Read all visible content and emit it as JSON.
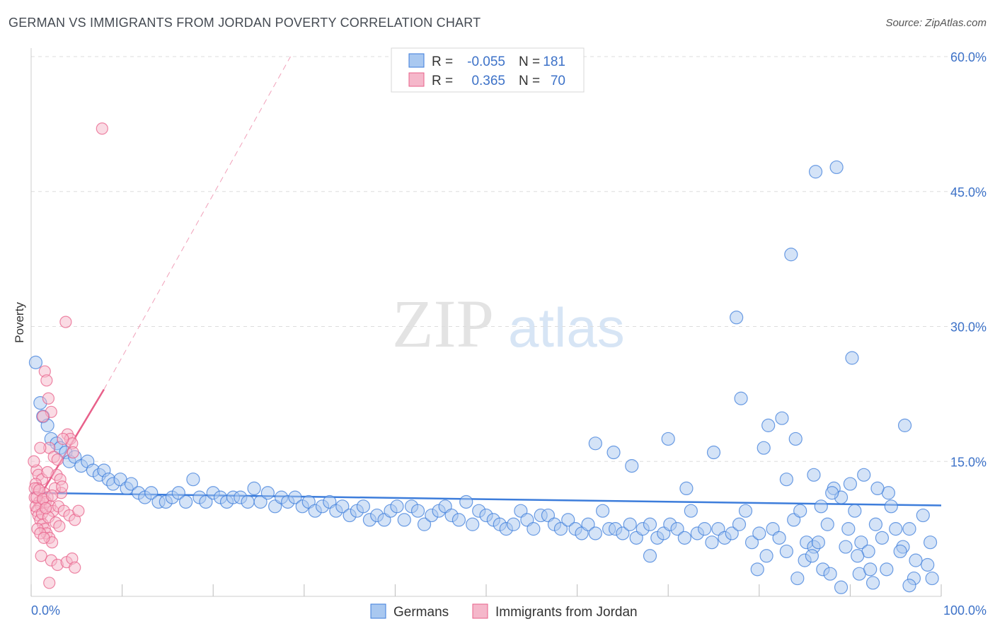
{
  "title": "GERMAN VS IMMIGRANTS FROM JORDAN POVERTY CORRELATION CHART",
  "source": "Source: ZipAtlas.com",
  "watermark": {
    "zip": "ZIP",
    "atlas": "atlas"
  },
  "colors": {
    "blue": "#3d7ddb",
    "blue_fill": "#a9c8f0",
    "pink": "#e8608a",
    "pink_fill": "#f5b7ca",
    "tick_text": "#3d72c8",
    "grid": "#dddddd"
  },
  "legend": {
    "rows": [
      {
        "r_label": "R =",
        "r_value": "-0.055",
        "n_label": "N =",
        "n_value": "181"
      },
      {
        "r_label": "R =",
        "r_value": "0.365",
        "n_label": "N =",
        "n_value": "70"
      }
    ]
  },
  "bottom_legend": [
    "Germans",
    "Immigrants from Jordan"
  ],
  "chart_data": {
    "type": "scatter",
    "xlabel": "",
    "ylabel": "Poverty",
    "xlim": [
      0,
      100
    ],
    "ylim": [
      0,
      60
    ],
    "x_tick_labels": [
      "0.0%",
      "100.0%"
    ],
    "y_ticks": [
      15,
      30,
      45,
      60
    ],
    "y_tick_labels": [
      "15.0%",
      "30.0%",
      "45.0%",
      "60.0%"
    ],
    "grid": "horizontal-dashed",
    "legend_placement": "top-center",
    "series": [
      {
        "name": "Germans",
        "r": -0.055,
        "n": 181,
        "trend": {
          "x": [
            0,
            100
          ],
          "y": [
            11.5,
            10.1
          ]
        },
        "points": [
          [
            0.5,
            26.0
          ],
          [
            1.0,
            21.5
          ],
          [
            1.3,
            20.0
          ],
          [
            1.8,
            19.0
          ],
          [
            2.2,
            17.5
          ],
          [
            2.8,
            17.0
          ],
          [
            3.2,
            16.5
          ],
          [
            3.8,
            16.0
          ],
          [
            4.2,
            15.0
          ],
          [
            4.8,
            15.5
          ],
          [
            5.5,
            14.5
          ],
          [
            6.2,
            15.0
          ],
          [
            6.8,
            14.0
          ],
          [
            7.5,
            13.5
          ],
          [
            8.0,
            14.0
          ],
          [
            8.5,
            13.0
          ],
          [
            9.0,
            12.5
          ],
          [
            9.8,
            13.0
          ],
          [
            10.5,
            12.0
          ],
          [
            11.0,
            12.5
          ],
          [
            11.8,
            11.5
          ],
          [
            12.5,
            11.0
          ],
          [
            13.2,
            11.5
          ],
          [
            14.0,
            10.5
          ],
          [
            14.8,
            10.5
          ],
          [
            15.5,
            11.0
          ],
          [
            16.2,
            11.5
          ],
          [
            17.0,
            10.5
          ],
          [
            17.8,
            13.0
          ],
          [
            18.5,
            11.0
          ],
          [
            19.2,
            10.5
          ],
          [
            20.0,
            11.5
          ],
          [
            20.8,
            11.0
          ],
          [
            21.5,
            10.5
          ],
          [
            22.2,
            11.0
          ],
          [
            23.0,
            11.0
          ],
          [
            23.8,
            10.5
          ],
          [
            24.5,
            12.0
          ],
          [
            25.2,
            10.5
          ],
          [
            26.0,
            11.5
          ],
          [
            26.8,
            10.0
          ],
          [
            27.5,
            11.0
          ],
          [
            28.2,
            10.5
          ],
          [
            29.0,
            11.0
          ],
          [
            29.8,
            10.0
          ],
          [
            30.5,
            10.5
          ],
          [
            31.2,
            9.5
          ],
          [
            32.0,
            10.0
          ],
          [
            32.8,
            10.5
          ],
          [
            33.5,
            9.5
          ],
          [
            34.2,
            10.0
          ],
          [
            35.0,
            9.0
          ],
          [
            35.8,
            9.5
          ],
          [
            36.5,
            10.0
          ],
          [
            37.2,
            8.5
          ],
          [
            38.0,
            9.0
          ],
          [
            38.8,
            8.5
          ],
          [
            39.5,
            9.5
          ],
          [
            40.2,
            10.0
          ],
          [
            41.0,
            8.5
          ],
          [
            41.8,
            10.0
          ],
          [
            42.5,
            9.5
          ],
          [
            43.2,
            8.0
          ],
          [
            44.0,
            9.0
          ],
          [
            44.8,
            9.5
          ],
          [
            45.5,
            10.0
          ],
          [
            46.2,
            9.0
          ],
          [
            47.0,
            8.5
          ],
          [
            47.8,
            10.5
          ],
          [
            48.5,
            8.0
          ],
          [
            49.2,
            9.5
          ],
          [
            50.0,
            9.0
          ],
          [
            50.8,
            8.5
          ],
          [
            51.5,
            8.0
          ],
          [
            52.2,
            7.5
          ],
          [
            53.0,
            8.0
          ],
          [
            53.8,
            9.5
          ],
          [
            54.5,
            8.5
          ],
          [
            55.2,
            7.5
          ],
          [
            56.0,
            9.0
          ],
          [
            56.8,
            9.0
          ],
          [
            57.5,
            8.0
          ],
          [
            58.2,
            7.5
          ],
          [
            59.0,
            8.5
          ],
          [
            59.8,
            7.5
          ],
          [
            60.5,
            7.0
          ],
          [
            61.2,
            8.0
          ],
          [
            62.0,
            7.0
          ],
          [
            62.8,
            9.5
          ],
          [
            63.5,
            7.5
          ],
          [
            64.2,
            7.5
          ],
          [
            65.0,
            7.0
          ],
          [
            65.8,
            8.0
          ],
          [
            66.5,
            6.5
          ],
          [
            67.2,
            7.5
          ],
          [
            68.0,
            8.0
          ],
          [
            68.8,
            6.5
          ],
          [
            69.5,
            7.0
          ],
          [
            70.2,
            8.0
          ],
          [
            71.0,
            7.5
          ],
          [
            71.8,
            6.5
          ],
          [
            72.5,
            9.5
          ],
          [
            73.2,
            7.0
          ],
          [
            74.0,
            7.5
          ],
          [
            74.8,
            6.0
          ],
          [
            75.5,
            7.5
          ],
          [
            76.2,
            6.5
          ],
          [
            77.0,
            7.0
          ],
          [
            77.8,
            8.0
          ],
          [
            78.5,
            9.5
          ],
          [
            79.2,
            6.0
          ],
          [
            80.0,
            7.0
          ],
          [
            80.8,
            4.5
          ],
          [
            81.5,
            7.5
          ],
          [
            82.2,
            6.5
          ],
          [
            83.0,
            5.0
          ],
          [
            83.8,
            8.5
          ],
          [
            84.5,
            9.5
          ],
          [
            85.2,
            6.0
          ],
          [
            86.0,
            5.5
          ],
          [
            86.8,
            10.0
          ],
          [
            87.5,
            8.0
          ],
          [
            88.2,
            12.0
          ],
          [
            89.0,
            11.0
          ],
          [
            89.8,
            7.5
          ],
          [
            90.5,
            9.5
          ],
          [
            91.2,
            6.0
          ],
          [
            92.0,
            5.0
          ],
          [
            92.8,
            8.0
          ],
          [
            93.5,
            6.5
          ],
          [
            94.2,
            11.5
          ],
          [
            95.0,
            7.5
          ],
          [
            95.8,
            5.5
          ],
          [
            96.5,
            7.5
          ],
          [
            97.2,
            4.0
          ],
          [
            98.0,
            9.0
          ],
          [
            98.8,
            6.0
          ],
          [
            68.0,
            4.5
          ],
          [
            62.0,
            17.0
          ],
          [
            64.0,
            16.0
          ],
          [
            66.0,
            14.5
          ],
          [
            70.0,
            17.5
          ],
          [
            72.0,
            12.0
          ],
          [
            75.0,
            16.0
          ],
          [
            78.0,
            22.0
          ],
          [
            81.0,
            19.0
          ],
          [
            84.0,
            17.5
          ],
          [
            86.0,
            13.5
          ],
          [
            88.0,
            11.5
          ],
          [
            90.0,
            12.5
          ],
          [
            77.5,
            31.0
          ],
          [
            83.5,
            38.0
          ],
          [
            86.2,
            47.2
          ],
          [
            88.5,
            47.7
          ],
          [
            90.2,
            26.5
          ],
          [
            91.5,
            13.5
          ],
          [
            93.0,
            12.0
          ],
          [
            94.5,
            10.0
          ],
          [
            96.0,
            19.0
          ],
          [
            80.5,
            16.5
          ],
          [
            82.5,
            19.8
          ],
          [
            83.0,
            13.0
          ],
          [
            85.0,
            4.0
          ],
          [
            87.0,
            3.0
          ],
          [
            89.0,
            1.0
          ],
          [
            91.0,
            2.5
          ],
          [
            92.5,
            1.5
          ],
          [
            94.0,
            3.0
          ],
          [
            95.5,
            5.0
          ],
          [
            97.0,
            2.0
          ],
          [
            98.5,
            3.5
          ],
          [
            99.0,
            2.0
          ],
          [
            96.5,
            1.2
          ],
          [
            92.2,
            3.0
          ],
          [
            90.8,
            4.5
          ],
          [
            89.5,
            5.5
          ],
          [
            87.8,
            2.5
          ],
          [
            86.5,
            6.0
          ],
          [
            85.8,
            4.5
          ],
          [
            84.2,
            2.0
          ],
          [
            79.8,
            3.0
          ]
        ]
      },
      {
        "name": "Immigrants from Jordan",
        "r": 0.365,
        "n": 70,
        "trend": {
          "x": [
            0,
            8
          ],
          "y": [
            9.5,
            23.0
          ]
        },
        "trend_extension": {
          "x": [
            8,
            28.5
          ],
          "y": [
            23.0,
            60.0
          ]
        },
        "points": [
          [
            7.8,
            52.0
          ],
          [
            3.8,
            30.5
          ],
          [
            1.5,
            25.0
          ],
          [
            1.7,
            24.0
          ],
          [
            1.9,
            22.0
          ],
          [
            2.2,
            20.5
          ],
          [
            1.3,
            20.0
          ],
          [
            4.0,
            18.0
          ],
          [
            4.3,
            17.5
          ],
          [
            4.5,
            17.0
          ],
          [
            3.5,
            17.5
          ],
          [
            2.0,
            16.5
          ],
          [
            1.0,
            16.5
          ],
          [
            2.5,
            15.5
          ],
          [
            0.6,
            14.0
          ],
          [
            0.8,
            13.5
          ],
          [
            1.2,
            13.0
          ],
          [
            2.8,
            13.5
          ],
          [
            3.2,
            13.0
          ],
          [
            0.5,
            12.5
          ],
          [
            0.7,
            12.0
          ],
          [
            1.4,
            11.5
          ],
          [
            1.8,
            11.0
          ],
          [
            0.4,
            11.0
          ],
          [
            0.9,
            10.5
          ],
          [
            1.1,
            10.0
          ],
          [
            1.6,
            10.5
          ],
          [
            2.1,
            10.0
          ],
          [
            2.4,
            9.5
          ],
          [
            0.6,
            9.5
          ],
          [
            0.8,
            9.0
          ],
          [
            1.0,
            8.5
          ],
          [
            1.3,
            8.0
          ],
          [
            1.5,
            7.5
          ],
          [
            1.7,
            7.0
          ],
          [
            2.0,
            6.5
          ],
          [
            2.3,
            6.0
          ],
          [
            3.0,
            10.0
          ],
          [
            3.6,
            9.5
          ],
          [
            4.2,
            9.0
          ],
          [
            4.8,
            8.5
          ],
          [
            5.2,
            9.5
          ],
          [
            3.3,
            11.5
          ],
          [
            2.6,
            12.0
          ],
          [
            0.3,
            15.0
          ],
          [
            0.5,
            10.0
          ],
          [
            1.2,
            9.2
          ],
          [
            1.9,
            8.8
          ],
          [
            2.7,
            8.2
          ],
          [
            3.1,
            7.8
          ],
          [
            0.7,
            7.5
          ],
          [
            1.0,
            7.0
          ],
          [
            1.4,
            6.5
          ],
          [
            2.2,
            4.0
          ],
          [
            2.9,
            3.5
          ],
          [
            3.9,
            3.8
          ],
          [
            4.5,
            4.2
          ],
          [
            4.8,
            3.2
          ],
          [
            2.0,
            1.5
          ],
          [
            1.1,
            4.5
          ],
          [
            0.4,
            12.0
          ],
          [
            0.6,
            11.0
          ],
          [
            0.9,
            11.8
          ],
          [
            1.3,
            10.8
          ],
          [
            1.6,
            9.8
          ],
          [
            2.3,
            11.2
          ],
          [
            3.4,
            12.2
          ],
          [
            4.6,
            16.0
          ],
          [
            1.8,
            13.8
          ],
          [
            2.9,
            15.2
          ]
        ]
      }
    ]
  }
}
